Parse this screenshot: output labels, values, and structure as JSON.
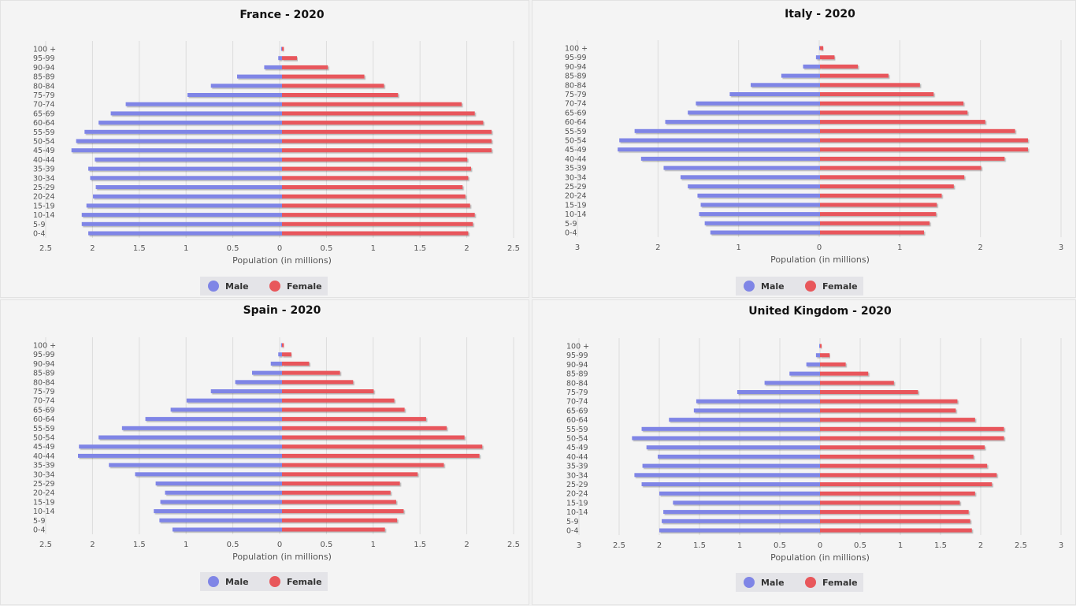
{
  "legend": {
    "male_label": "Male",
    "female_label": "Female"
  },
  "colors": {
    "male": "#7f85e6",
    "female": "#e8575b",
    "grid": "#dcdcdc",
    "legend_bg": "#e4e4e8"
  },
  "chart_data": [
    {
      "type": "bar",
      "title": "France - 2020",
      "xlabel": "Population (in millions)",
      "categories": [
        "100 +",
        "95-99",
        "90-94",
        "85-89",
        "80-84",
        "75-79",
        "70-74",
        "65-69",
        "60-64",
        "55-59",
        "50-54",
        "45-49",
        "40-44",
        "35-39",
        "30-34",
        "25-29",
        "20-24",
        "15-19",
        "10-14",
        "5-9",
        "0-4"
      ],
      "xticks": [
        "2.5",
        "2",
        "1.5",
        "1",
        "0.5",
        "0",
        "0.5",
        "1",
        "1.5",
        "2",
        "2.5"
      ],
      "xlim": [
        -2.5,
        2.5
      ],
      "series": [
        {
          "name": "Male",
          "values": [
            0.01,
            0.04,
            0.19,
            0.48,
            0.76,
            1.01,
            1.67,
            1.83,
            1.96,
            2.11,
            2.2,
            2.25,
            2.0,
            2.07,
            2.05,
            1.99,
            2.02,
            2.09,
            2.14,
            2.14,
            2.07
          ]
        },
        {
          "name": "Female",
          "values": [
            0.02,
            0.16,
            0.49,
            0.88,
            1.09,
            1.24,
            1.92,
            2.06,
            2.15,
            2.24,
            2.24,
            2.24,
            1.98,
            2.02,
            1.99,
            1.93,
            1.96,
            2.01,
            2.06,
            2.04,
            1.99
          ]
        }
      ]
    },
    {
      "type": "bar",
      "title": "Italy - 2020",
      "xlabel": "Population (in millions)",
      "categories": [
        "100 +",
        "95-99",
        "90-94",
        "85-89",
        "80-84",
        "75-79",
        "70-74",
        "65-69",
        "60-64",
        "55-59",
        "50-54",
        "45-49",
        "40-44",
        "35-39",
        "30-34",
        "25-29",
        "20-24",
        "15-19",
        "10-14",
        "5-9",
        "0-4"
      ],
      "xticks": [
        "3",
        "2",
        "1",
        "0",
        "1",
        "2",
        "3"
      ],
      "xlim": [
        -3,
        3
      ],
      "series": [
        {
          "name": "Male",
          "values": [
            0.01,
            0.05,
            0.21,
            0.48,
            0.86,
            1.12,
            1.54,
            1.64,
            1.92,
            2.3,
            2.49,
            2.51,
            2.22,
            1.94,
            1.73,
            1.64,
            1.52,
            1.48,
            1.5,
            1.43,
            1.36
          ]
        },
        {
          "name": "Female",
          "values": [
            0.04,
            0.18,
            0.47,
            0.85,
            1.24,
            1.41,
            1.78,
            1.83,
            2.05,
            2.42,
            2.58,
            2.58,
            2.29,
            2.0,
            1.79,
            1.66,
            1.51,
            1.45,
            1.44,
            1.36,
            1.29
          ]
        }
      ]
    },
    {
      "type": "bar",
      "title": "Spain - 2020",
      "xlabel": "Population (in millions)",
      "categories": [
        "100 +",
        "95-99",
        "90-94",
        "85-89",
        "80-84",
        "75-79",
        "70-74",
        "65-69",
        "60-64",
        "55-59",
        "50-54",
        "45-49",
        "40-44",
        "35-39",
        "30-34",
        "25-29",
        "20-24",
        "15-19",
        "10-14",
        "5-9",
        "0-4"
      ],
      "xticks": [
        "2.5",
        "2",
        "1.5",
        "1",
        "0.5",
        "0",
        "0.5",
        "1",
        "1.5",
        "2",
        "2.5"
      ],
      "xlim": [
        -2.5,
        2.5
      ],
      "series": [
        {
          "name": "Male",
          "values": [
            0.01,
            0.04,
            0.12,
            0.32,
            0.5,
            0.76,
            1.02,
            1.19,
            1.46,
            1.71,
            1.96,
            2.17,
            2.18,
            1.85,
            1.57,
            1.35,
            1.25,
            1.3,
            1.37,
            1.31,
            1.17
          ]
        },
        {
          "name": "Female",
          "values": [
            0.02,
            0.1,
            0.29,
            0.62,
            0.76,
            0.98,
            1.2,
            1.31,
            1.54,
            1.76,
            1.95,
            2.14,
            2.11,
            1.73,
            1.45,
            1.26,
            1.16,
            1.22,
            1.3,
            1.23,
            1.1
          ]
        }
      ]
    },
    {
      "type": "bar",
      "title": "United Kingdom - 2020",
      "xlabel": "Population (in millions)",
      "categories": [
        "100 +",
        "95-99",
        "90-94",
        "85-89",
        "80-84",
        "75-79",
        "70-74",
        "65-69",
        "60-64",
        "55-59",
        "50-54",
        "45-49",
        "40-44",
        "35-39",
        "30-34",
        "25-29",
        "20-24",
        "15-19",
        "10-14",
        "5-9",
        "0-4"
      ],
      "xticks": [
        "3",
        "2.5",
        "2",
        "1.5",
        "1",
        "0.5",
        "0",
        "0.5",
        "1",
        "1.5",
        "2",
        "2.5",
        "3"
      ],
      "xlim": [
        -3,
        3
      ],
      "series": [
        {
          "name": "Male",
          "values": [
            0.01,
            0.05,
            0.17,
            0.38,
            0.69,
            1.03,
            1.54,
            1.57,
            1.88,
            2.22,
            2.34,
            2.16,
            2.02,
            2.21,
            2.31,
            2.22,
            2.0,
            1.83,
            1.95,
            1.97,
            2.0
          ]
        },
        {
          "name": "Female",
          "values": [
            0.02,
            0.12,
            0.32,
            0.6,
            0.92,
            1.22,
            1.71,
            1.69,
            1.93,
            2.29,
            2.29,
            2.05,
            1.91,
            2.08,
            2.2,
            2.14,
            1.93,
            1.74,
            1.85,
            1.87,
            1.89
          ]
        }
      ]
    }
  ]
}
